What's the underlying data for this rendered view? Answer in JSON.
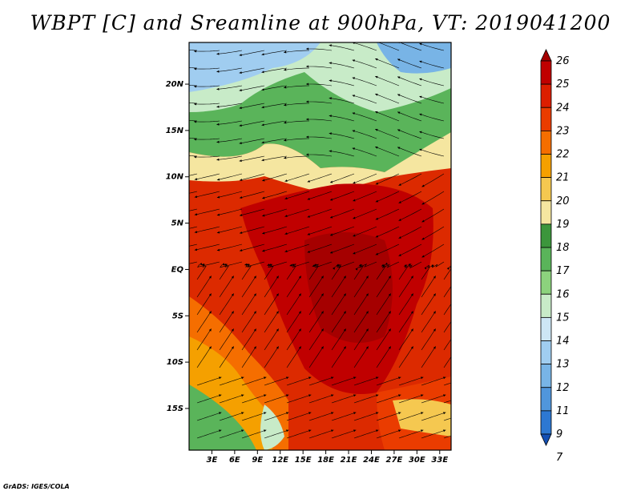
{
  "title": "WBPT [C] and Sreamline at 900hPa, VT: 2019041200",
  "footer": "GrADS: IGES/COLA",
  "map": {
    "variable": "WBPT",
    "level": "900hPa",
    "valid_time": "2019041200",
    "lat_ticks": [
      "20N",
      "15N",
      "10N",
      "5N",
      "EQ",
      "5S",
      "10S",
      "15S"
    ],
    "lat_values": [
      20,
      15,
      10,
      5,
      0,
      -5,
      -10,
      -15
    ],
    "lon_ticks": [
      "3E",
      "6E",
      "9E",
      "12E",
      "15E",
      "18E",
      "21E",
      "24E",
      "27E",
      "30E",
      "33E"
    ],
    "lon_values": [
      3,
      6,
      9,
      12,
      15,
      18,
      21,
      24,
      27,
      30,
      33
    ],
    "lat_range": [
      -19.5,
      24.5
    ],
    "lon_range": [
      0,
      34.5
    ]
  },
  "colorbar": {
    "labels": [
      "26",
      "25",
      "24",
      "23",
      "22",
      "21",
      "20",
      "19",
      "18",
      "17",
      "16",
      "15",
      "14",
      "13",
      "12",
      "11",
      "9",
      "7"
    ],
    "colors": [
      "#a50000",
      "#c00000",
      "#dc1e00",
      "#ea3c00",
      "#f56e00",
      "#f5a000",
      "#f5c850",
      "#f5e6a0",
      "#3c963c",
      "#5ab45a",
      "#8cd27d",
      "#c8ebc8",
      "#cde6f5",
      "#a0cdf0",
      "#78b4e6",
      "#5096dc",
      "#2d78d2",
      "#1450b4"
    ]
  }
}
